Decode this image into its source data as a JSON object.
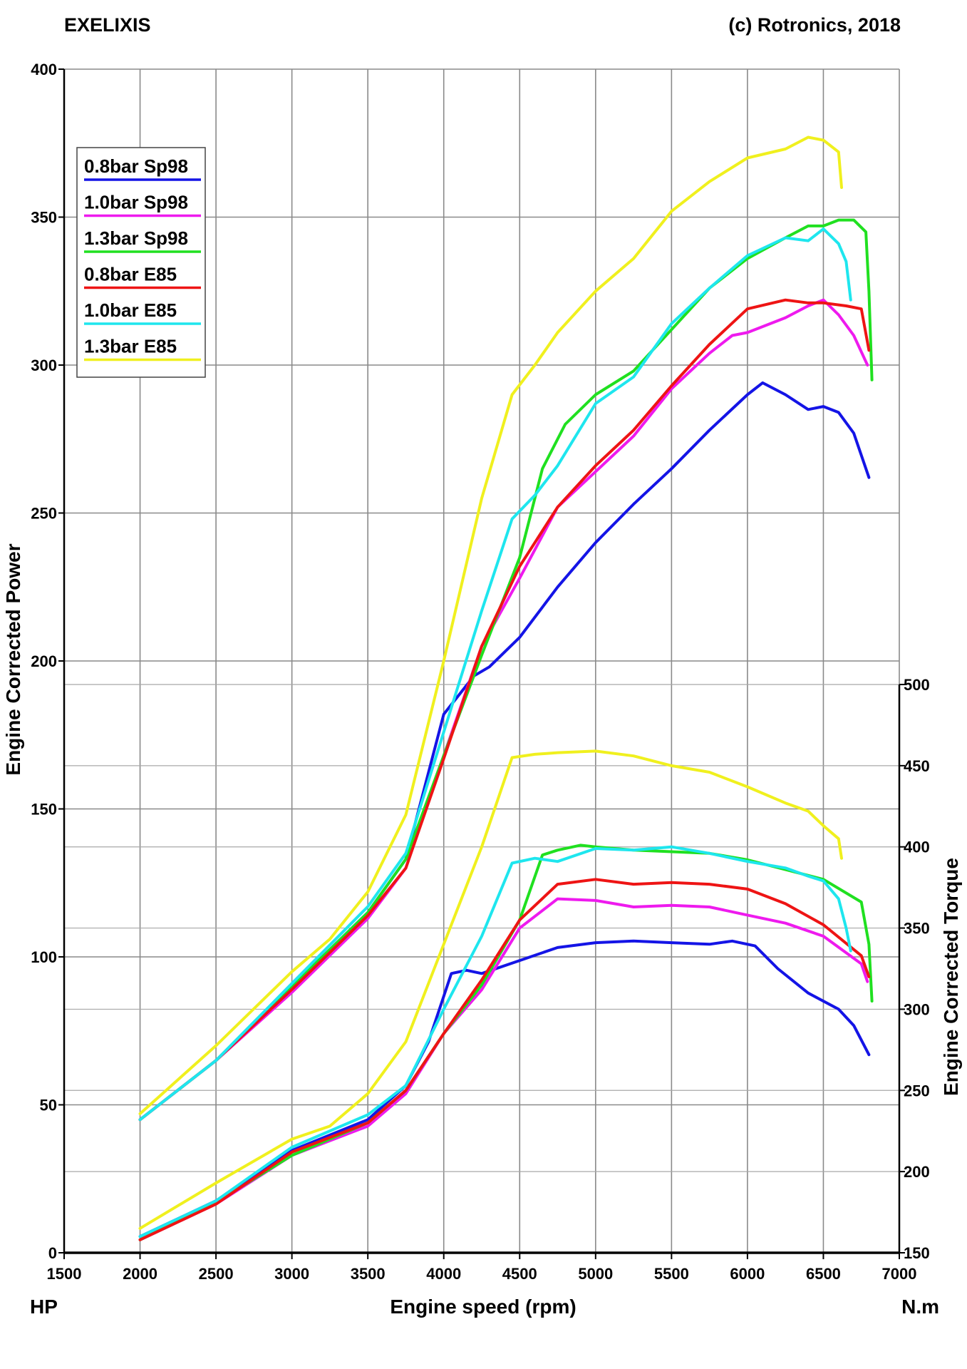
{
  "header": {
    "brand": "EXELIXIS",
    "copyright": "(c) Rotronics, 2018"
  },
  "chart_data": {
    "type": "line",
    "x_axis": {
      "label": "Engine speed (rpm)",
      "range": [
        1500,
        7000
      ],
      "ticks": [
        1500,
        2000,
        2500,
        3000,
        3500,
        4000,
        4500,
        5000,
        5500,
        6000,
        6500,
        7000
      ]
    },
    "y_left": {
      "label": "Engine Corrected Power",
      "unit": "HP",
      "range": [
        0,
        400
      ],
      "ticks": [
        0,
        50,
        100,
        150,
        200,
        250,
        300,
        350,
        400
      ]
    },
    "y_right": {
      "label": "Engine Corrected Torque",
      "unit": "N.m",
      "range": [
        150,
        500
      ],
      "ticks": [
        150,
        200,
        250,
        300,
        350,
        400,
        450,
        500
      ]
    },
    "grid": true,
    "legend_position": "top-left",
    "series": [
      {
        "name": "0.8bar Sp98",
        "color": "#1414e6",
        "power": [
          [
            2000,
            45
          ],
          [
            2500,
            65
          ],
          [
            3000,
            90
          ],
          [
            3500,
            115
          ],
          [
            3750,
            133
          ],
          [
            4000,
            182
          ],
          [
            4200,
            195
          ],
          [
            4300,
            198
          ],
          [
            4500,
            208
          ],
          [
            4750,
            225
          ],
          [
            5000,
            240
          ],
          [
            5250,
            253
          ],
          [
            5500,
            265
          ],
          [
            5750,
            278
          ],
          [
            6000,
            290
          ],
          [
            6100,
            294
          ],
          [
            6250,
            290
          ],
          [
            6400,
            285
          ],
          [
            6500,
            286
          ],
          [
            6600,
            284
          ],
          [
            6700,
            277
          ],
          [
            6800,
            262
          ]
        ],
        "torque": [
          [
            2000,
            160
          ],
          [
            2500,
            182
          ],
          [
            3000,
            213
          ],
          [
            3500,
            232
          ],
          [
            3750,
            253
          ],
          [
            3900,
            280
          ],
          [
            4050,
            322
          ],
          [
            4150,
            324
          ],
          [
            4250,
            322
          ],
          [
            4500,
            330
          ],
          [
            4750,
            338
          ],
          [
            5000,
            341
          ],
          [
            5250,
            342
          ],
          [
            5500,
            341
          ],
          [
            5750,
            340
          ],
          [
            5900,
            342
          ],
          [
            6050,
            339
          ],
          [
            6200,
            325
          ],
          [
            6400,
            310
          ],
          [
            6600,
            300
          ],
          [
            6700,
            290
          ],
          [
            6800,
            272
          ]
        ]
      },
      {
        "name": "1.0bar Sp98",
        "color": "#ee1aee",
        "power": [
          [
            2000,
            45
          ],
          [
            2500,
            65
          ],
          [
            3000,
            88
          ],
          [
            3500,
            113
          ],
          [
            3750,
            130
          ],
          [
            4000,
            168
          ],
          [
            4250,
            205
          ],
          [
            4500,
            228
          ],
          [
            4750,
            252
          ],
          [
            5000,
            264
          ],
          [
            5250,
            276
          ],
          [
            5500,
            292
          ],
          [
            5750,
            304
          ],
          [
            5900,
            310
          ],
          [
            6000,
            311
          ],
          [
            6250,
            316
          ],
          [
            6400,
            320
          ],
          [
            6500,
            322
          ],
          [
            6600,
            317
          ],
          [
            6700,
            310
          ],
          [
            6790,
            300
          ]
        ],
        "torque": [
          [
            2000,
            158
          ],
          [
            2500,
            180
          ],
          [
            3000,
            210
          ],
          [
            3500,
            228
          ],
          [
            3750,
            248
          ],
          [
            4000,
            285
          ],
          [
            4250,
            312
          ],
          [
            4500,
            350
          ],
          [
            4750,
            368
          ],
          [
            5000,
            367
          ],
          [
            5250,
            363
          ],
          [
            5500,
            364
          ],
          [
            5750,
            363
          ],
          [
            6000,
            358
          ],
          [
            6250,
            353
          ],
          [
            6500,
            345
          ],
          [
            6750,
            328
          ],
          [
            6790,
            317
          ]
        ]
      },
      {
        "name": "1.3bar Sp98",
        "color": "#20e020",
        "power": [
          [
            2000,
            45
          ],
          [
            2500,
            65
          ],
          [
            3000,
            90
          ],
          [
            3500,
            115
          ],
          [
            3750,
            133
          ],
          [
            4000,
            168
          ],
          [
            4250,
            202
          ],
          [
            4500,
            235
          ],
          [
            4650,
            265
          ],
          [
            4800,
            280
          ],
          [
            5000,
            290
          ],
          [
            5250,
            298
          ],
          [
            5500,
            312
          ],
          [
            5750,
            326
          ],
          [
            6000,
            336
          ],
          [
            6250,
            343
          ],
          [
            6400,
            347
          ],
          [
            6500,
            347
          ],
          [
            6600,
            349
          ],
          [
            6700,
            349
          ],
          [
            6780,
            345
          ],
          [
            6800,
            325
          ],
          [
            6820,
            295
          ]
        ],
        "torque": [
          [
            2000,
            158
          ],
          [
            2500,
            181
          ],
          [
            3000,
            210
          ],
          [
            3500,
            230
          ],
          [
            3750,
            250
          ],
          [
            4000,
            285
          ],
          [
            4250,
            315
          ],
          [
            4500,
            355
          ],
          [
            4650,
            395
          ],
          [
            4750,
            398
          ],
          [
            4900,
            401
          ],
          [
            5000,
            400
          ],
          [
            5250,
            398
          ],
          [
            5500,
            397
          ],
          [
            5750,
            396
          ],
          [
            6000,
            392
          ],
          [
            6250,
            386
          ],
          [
            6500,
            380
          ],
          [
            6750,
            366
          ],
          [
            6800,
            340
          ],
          [
            6820,
            305
          ]
        ]
      },
      {
        "name": "0.8bar E85",
        "color": "#ee1414",
        "power": [
          [
            2000,
            45
          ],
          [
            2500,
            65
          ],
          [
            3000,
            89
          ],
          [
            3500,
            114
          ],
          [
            3750,
            130
          ],
          [
            4000,
            167
          ],
          [
            4250,
            205
          ],
          [
            4500,
            232
          ],
          [
            4750,
            252
          ],
          [
            5000,
            266
          ],
          [
            5250,
            278
          ],
          [
            5500,
            293
          ],
          [
            5750,
            307
          ],
          [
            6000,
            319
          ],
          [
            6250,
            322
          ],
          [
            6400,
            321
          ],
          [
            6500,
            321
          ],
          [
            6650,
            320
          ],
          [
            6750,
            319
          ],
          [
            6800,
            305
          ]
        ],
        "torque": [
          [
            2000,
            158
          ],
          [
            2500,
            180
          ],
          [
            3000,
            212
          ],
          [
            3500,
            230
          ],
          [
            3750,
            250
          ],
          [
            4000,
            285
          ],
          [
            4250,
            318
          ],
          [
            4500,
            355
          ],
          [
            4750,
            377
          ],
          [
            5000,
            380
          ],
          [
            5250,
            377
          ],
          [
            5500,
            378
          ],
          [
            5750,
            377
          ],
          [
            6000,
            374
          ],
          [
            6250,
            365
          ],
          [
            6500,
            352
          ],
          [
            6750,
            333
          ],
          [
            6800,
            320
          ]
        ]
      },
      {
        "name": "1.0bar E85",
        "color": "#1ee6ee",
        "power": [
          [
            2000,
            45
          ],
          [
            2500,
            65
          ],
          [
            3000,
            91
          ],
          [
            3500,
            117
          ],
          [
            3750,
            135
          ],
          [
            4000,
            176
          ],
          [
            4250,
            217
          ],
          [
            4450,
            248
          ],
          [
            4600,
            256
          ],
          [
            4750,
            266
          ],
          [
            5000,
            287
          ],
          [
            5250,
            296
          ],
          [
            5500,
            314
          ],
          [
            5750,
            326
          ],
          [
            6000,
            337
          ],
          [
            6250,
            343
          ],
          [
            6400,
            342
          ],
          [
            6500,
            346
          ],
          [
            6600,
            341
          ],
          [
            6650,
            335
          ],
          [
            6680,
            322
          ]
        ],
        "torque": [
          [
            2000,
            160
          ],
          [
            2500,
            182
          ],
          [
            3000,
            215
          ],
          [
            3500,
            235
          ],
          [
            3750,
            253
          ],
          [
            4000,
            300
          ],
          [
            4250,
            345
          ],
          [
            4450,
            390
          ],
          [
            4600,
            393
          ],
          [
            4750,
            391
          ],
          [
            5000,
            399
          ],
          [
            5250,
            398
          ],
          [
            5500,
            400
          ],
          [
            5750,
            396
          ],
          [
            6000,
            391
          ],
          [
            6250,
            387
          ],
          [
            6400,
            382
          ],
          [
            6500,
            379
          ],
          [
            6600,
            368
          ],
          [
            6650,
            350
          ],
          [
            6680,
            336
          ]
        ]
      },
      {
        "name": "1.3bar E85",
        "color": "#f0f01e",
        "power": [
          [
            2000,
            47
          ],
          [
            2500,
            70
          ],
          [
            3000,
            95
          ],
          [
            3250,
            106
          ],
          [
            3500,
            122
          ],
          [
            3750,
            148
          ],
          [
            4000,
            200
          ],
          [
            4250,
            255
          ],
          [
            4450,
            290
          ],
          [
            4600,
            300
          ],
          [
            4750,
            311
          ],
          [
            5000,
            325
          ],
          [
            5250,
            336
          ],
          [
            5500,
            352
          ],
          [
            5750,
            362
          ],
          [
            6000,
            370
          ],
          [
            6250,
            373
          ],
          [
            6400,
            377
          ],
          [
            6500,
            376
          ],
          [
            6600,
            372
          ],
          [
            6620,
            360
          ]
        ],
        "torque": [
          [
            2000,
            165
          ],
          [
            2500,
            193
          ],
          [
            3000,
            220
          ],
          [
            3250,
            228
          ],
          [
            3500,
            248
          ],
          [
            3750,
            280
          ],
          [
            4000,
            340
          ],
          [
            4250,
            400
          ],
          [
            4450,
            455
          ],
          [
            4600,
            457
          ],
          [
            4750,
            458
          ],
          [
            5000,
            459
          ],
          [
            5250,
            456
          ],
          [
            5500,
            450
          ],
          [
            5750,
            446
          ],
          [
            6000,
            437
          ],
          [
            6250,
            427
          ],
          [
            6400,
            422
          ],
          [
            6500,
            413
          ],
          [
            6600,
            405
          ],
          [
            6620,
            393
          ]
        ]
      }
    ]
  }
}
